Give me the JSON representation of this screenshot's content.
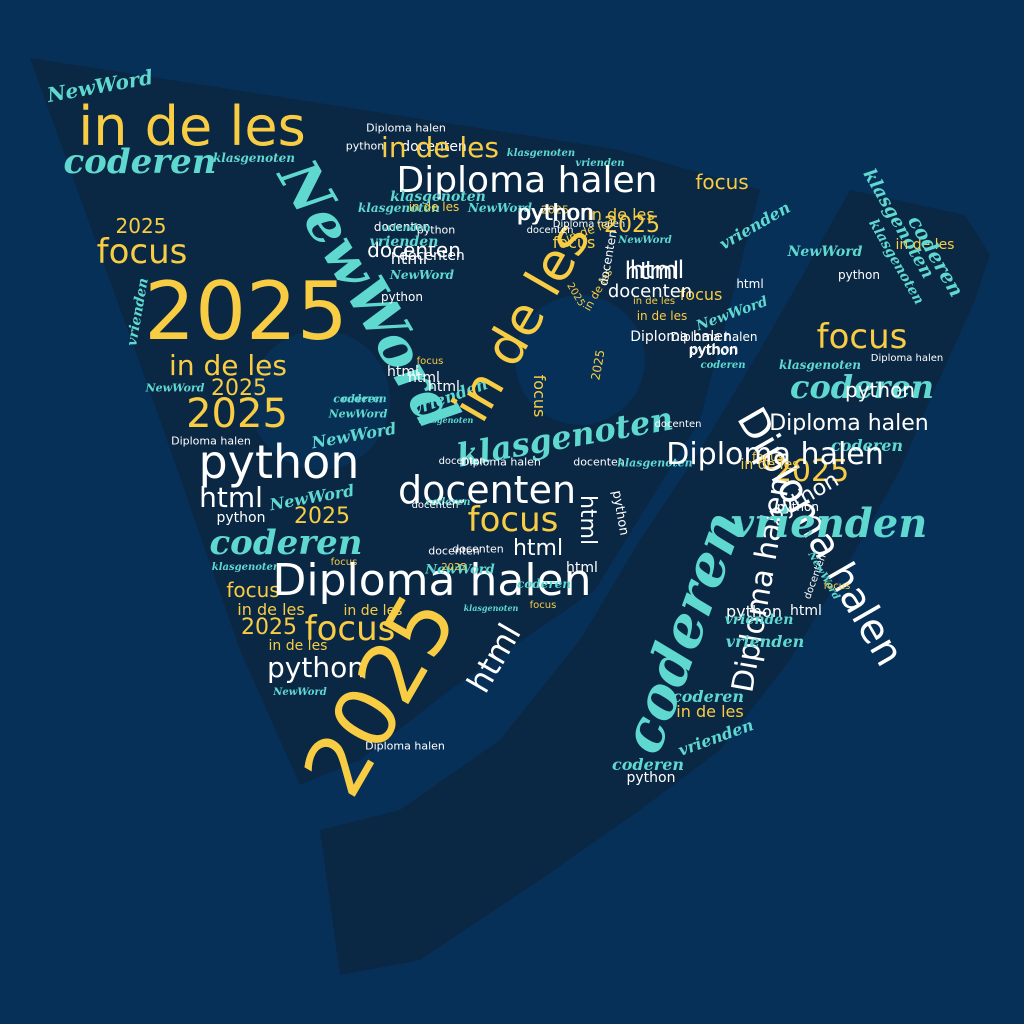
{
  "colors": {
    "background": "#063058",
    "shape_fill": "#0a2744",
    "yellow": "#f8cd44",
    "white": "#ffffff",
    "teal": "#5fd9d0"
  },
  "words": [
    {
      "id": "w1",
      "text": "NewWord",
      "color": "teal",
      "rotation": -10
    },
    {
      "id": "w2",
      "text": "in de les",
      "color": "yellow",
      "rotation": 0
    },
    {
      "id": "w3",
      "text": "coderen",
      "color": "teal",
      "rotation": 0
    },
    {
      "id": "w4",
      "text": "Diploma halen",
      "color": "white",
      "rotation": 0
    },
    {
      "id": "w5",
      "text": "klasgenoten",
      "color": "teal",
      "rotation": 0
    },
    {
      "id": "w6",
      "text": "2025",
      "color": "yellow",
      "rotation": 0
    },
    {
      "id": "w7",
      "text": "focus",
      "color": "yellow",
      "rotation": 0
    },
    {
      "id": "w8",
      "text": "2025",
      "color": "yellow",
      "rotation": 0
    },
    {
      "id": "w9",
      "text": "vrienden",
      "color": "teal",
      "rotation": -80
    },
    {
      "id": "w10",
      "text": "in de les",
      "color": "yellow",
      "rotation": 0
    },
    {
      "id": "w11",
      "text": "NewWord",
      "color": "teal",
      "rotation": 0
    },
    {
      "id": "w12",
      "text": "2025",
      "color": "yellow",
      "rotation": 0
    },
    {
      "id": "w13",
      "text": "2025",
      "color": "yellow",
      "rotation": 0
    },
    {
      "id": "w14",
      "text": "Diploma halen",
      "color": "white",
      "rotation": 0
    },
    {
      "id": "w15",
      "text": "python",
      "color": "white",
      "rotation": 0
    },
    {
      "id": "w16",
      "text": "html",
      "color": "white",
      "rotation": 0
    },
    {
      "id": "w17",
      "text": "NewWord",
      "color": "teal",
      "rotation": -10
    },
    {
      "id": "w18",
      "text": "python",
      "color": "white",
      "rotation": 0
    },
    {
      "id": "w19",
      "text": "2025",
      "color": "yellow",
      "rotation": 0
    },
    {
      "id": "w20",
      "text": "coderen",
      "color": "teal",
      "rotation": 0
    },
    {
      "id": "w21",
      "text": "klasgenoten",
      "color": "teal",
      "rotation": 0
    },
    {
      "id": "w22",
      "text": "focus",
      "color": "yellow",
      "rotation": 0
    },
    {
      "id": "w23",
      "text": "focus",
      "color": "yellow",
      "rotation": 0
    },
    {
      "id": "w24",
      "text": "in de les",
      "color": "yellow",
      "rotation": 0
    },
    {
      "id": "w25",
      "text": "2025",
      "color": "yellow",
      "rotation": 0
    },
    {
      "id": "w26",
      "text": "in de les",
      "color": "yellow",
      "rotation": 0
    },
    {
      "id": "w27",
      "text": "python",
      "color": "white",
      "rotation": 0
    },
    {
      "id": "w28",
      "text": "NewWord",
      "color": "teal",
      "rotation": 0
    },
    {
      "id": "w29",
      "text": "Diploma halen",
      "color": "white",
      "rotation": 0
    },
    {
      "id": "w30",
      "text": "coderen",
      "color": "teal",
      "rotation": 0
    },
    {
      "id": "w31",
      "text": "klasgenoten",
      "color": "teal",
      "rotation": 0
    },
    {
      "id": "w32",
      "text": "in de les",
      "color": "yellow",
      "rotation": 0
    },
    {
      "id": "w33",
      "text": "Diploma halen",
      "color": "white",
      "rotation": 0
    },
    {
      "id": "w34",
      "text": "focus",
      "color": "yellow",
      "rotation": 0
    },
    {
      "id": "w35",
      "text": "2025",
      "color": "yellow",
      "rotation": -60
    },
    {
      "id": "w36",
      "text": "focus",
      "color": "yellow",
      "rotation": 0
    },
    {
      "id": "w37",
      "text": "docenten",
      "color": "white",
      "rotation": 0
    },
    {
      "id": "w38",
      "text": "NewWord",
      "color": "teal",
      "rotation": 0
    },
    {
      "id": "w39",
      "text": "python",
      "color": "white",
      "rotation": 0
    },
    {
      "id": "w40",
      "text": "NewWord",
      "color": "teal",
      "rotation": 60
    },
    {
      "id": "w41",
      "text": "2025",
      "color": "yellow",
      "rotation": 0
    },
    {
      "id": "w42",
      "text": "python",
      "color": "white",
      "rotation": 0
    },
    {
      "id": "w43",
      "text": "html",
      "color": "white",
      "rotation": 0
    },
    {
      "id": "w44",
      "text": "focus",
      "color": "yellow",
      "rotation": 0
    },
    {
      "id": "w45",
      "text": "html",
      "color": "white",
      "rotation": 0
    },
    {
      "id": "w46",
      "text": "html",
      "color": "white",
      "rotation": 0
    },
    {
      "id": "w47",
      "text": "vrienden",
      "color": "teal",
      "rotation": -20
    },
    {
      "id": "w48",
      "text": "klasgenoten",
      "color": "teal",
      "rotation": 0
    },
    {
      "id": "w49",
      "text": "coderen",
      "color": "teal",
      "rotation": 0
    },
    {
      "id": "w50",
      "text": "NewWord",
      "color": "teal",
      "rotation": 0
    },
    {
      "id": "w51",
      "text": "NewWord",
      "color": "teal",
      "rotation": -10
    },
    {
      "id": "w52",
      "text": "in de les",
      "color": "yellow",
      "rotation": -60
    },
    {
      "id": "w53",
      "text": "focus",
      "color": "yellow",
      "rotation": 90
    },
    {
      "id": "w54",
      "text": "klasgenoten",
      "color": "teal",
      "rotation": -10
    },
    {
      "id": "w55",
      "text": "docenten",
      "color": "white",
      "rotation": 0
    },
    {
      "id": "w56",
      "text": "Diploma halen",
      "color": "white",
      "rotation": 0
    },
    {
      "id": "w57",
      "text": "docenten",
      "color": "white",
      "rotation": 0
    },
    {
      "id": "w58",
      "text": "klasgenoten",
      "color": "teal",
      "rotation": 0
    },
    {
      "id": "w59",
      "text": "docenten",
      "color": "white",
      "rotation": 0
    },
    {
      "id": "w60",
      "text": "focus",
      "color": "yellow",
      "rotation": 0
    },
    {
      "id": "w61",
      "text": "html",
      "color": "white",
      "rotation": 90
    },
    {
      "id": "w62",
      "text": "python",
      "color": "white",
      "rotation": 80
    },
    {
      "id": "w63",
      "text": "html",
      "color": "white",
      "rotation": 0
    },
    {
      "id": "w64",
      "text": "docenten",
      "color": "white",
      "rotation": 0
    },
    {
      "id": "w65",
      "text": "html",
      "color": "white",
      "rotation": 0
    },
    {
      "id": "w66",
      "text": "2025",
      "color": "yellow",
      "rotation": 0
    },
    {
      "id": "w67",
      "text": "Diploma halen",
      "color": "white",
      "rotation": 0
    },
    {
      "id": "w68",
      "text": "focus",
      "color": "yellow",
      "rotation": 0
    },
    {
      "id": "w69",
      "text": "in de les",
      "color": "yellow",
      "rotation": 0
    },
    {
      "id": "w70",
      "text": "2025",
      "color": "yellow",
      "rotation": 0
    },
    {
      "id": "w71",
      "text": "focus",
      "color": "yellow",
      "rotation": 0
    },
    {
      "id": "w72",
      "text": "in de les",
      "color": "yellow",
      "rotation": 0
    },
    {
      "id": "w73",
      "text": "2025",
      "color": "yellow",
      "rotation": -80
    },
    {
      "id": "w74",
      "text": "2025",
      "color": "yellow",
      "rotation": 60
    },
    {
      "id": "w75",
      "text": "html",
      "color": "white",
      "rotation": -60
    },
    {
      "id": "w76",
      "text": "klasgenoten",
      "color": "teal",
      "rotation": 0
    },
    {
      "id": "w77",
      "text": "vrienden",
      "color": "teal",
      "rotation": 0
    },
    {
      "id": "w78",
      "text": "Diploma halen",
      "color": "white",
      "rotation": 0
    },
    {
      "id": "w79",
      "text": "focus",
      "color": "yellow",
      "rotation": 0
    },
    {
      "id": "w80",
      "text": "python",
      "color": "white",
      "rotation": 0
    },
    {
      "id": "w81",
      "text": "NewWord",
      "color": "teal",
      "rotation": 0
    },
    {
      "id": "w82",
      "text": "NewWord",
      "color": "teal",
      "rotation": -20
    },
    {
      "id": "w83",
      "text": "html",
      "color": "white",
      "rotation": 0
    },
    {
      "id": "w84",
      "text": "Diploma halen",
      "color": "white",
      "rotation": 0
    },
    {
      "id": "w85",
      "text": "in de les",
      "color": "yellow",
      "rotation": -60
    },
    {
      "id": "w86",
      "text": "docenten",
      "color": "white",
      "rotation": -80
    },
    {
      "id": "w87",
      "text": "in de les",
      "color": "yellow",
      "rotation": 0
    },
    {
      "id": "w88",
      "text": "docenten",
      "color": "white",
      "rotation": 0
    },
    {
      "id": "w89",
      "text": "python",
      "color": "white",
      "rotation": 0
    },
    {
      "id": "w90",
      "text": "html",
      "color": "white",
      "rotation": 0
    },
    {
      "id": "w91",
      "text": "docenten",
      "color": "white",
      "rotation": 0
    },
    {
      "id": "w92",
      "text": "python",
      "color": "white",
      "rotation": 0
    },
    {
      "id": "w93",
      "text": "docenten",
      "color": "white",
      "rotation": 0
    },
    {
      "id": "w94",
      "text": "klasgenoten",
      "color": "teal",
      "rotation": 0
    },
    {
      "id": "w95",
      "text": "klasgenoten",
      "color": "teal",
      "rotation": 0
    },
    {
      "id": "w96",
      "text": "vrienden",
      "color": "teal",
      "rotation": 0
    },
    {
      "id": "w97",
      "text": "html",
      "color": "white",
      "rotation": 0
    },
    {
      "id": "w98",
      "text": "NewWord",
      "color": "teal",
      "rotation": 0
    },
    {
      "id": "w99",
      "text": "docenten",
      "color": "white",
      "rotation": 0
    },
    {
      "id": "w100",
      "text": "vrienden",
      "color": "teal",
      "rotation": 0
    },
    {
      "id": "w101",
      "text": "Diploma halen",
      "color": "white",
      "rotation": 0
    },
    {
      "id": "w102",
      "text": "coderen",
      "color": "teal",
      "rotation": 0
    },
    {
      "id": "w103",
      "text": "NewWord",
      "color": "teal",
      "rotation": 0
    },
    {
      "id": "w104",
      "text": "docenten",
      "color": "white",
      "rotation": 0
    },
    {
      "id": "w105",
      "text": "coderen",
      "color": "teal",
      "rotation": 0
    },
    {
      "id": "w106",
      "text": "docenten",
      "color": "white",
      "rotation": 0
    },
    {
      "id": "w107",
      "text": "in de les",
      "color": "yellow",
      "rotation": 0
    },
    {
      "id": "w108",
      "text": "docenten",
      "color": "white",
      "rotation": 0
    },
    {
      "id": "w109",
      "text": "coderen",
      "color": "teal",
      "rotation": 0
    },
    {
      "id": "w110",
      "text": "in de les",
      "color": "yellow",
      "rotation": 0
    },
    {
      "id": "w111",
      "text": "python",
      "color": "white",
      "rotation": 0
    },
    {
      "id": "w112",
      "text": "docenten",
      "color": "white",
      "rotation": 0
    },
    {
      "id": "w113",
      "text": "in de les",
      "color": "yellow",
      "rotation": -20
    },
    {
      "id": "w114",
      "text": "python",
      "color": "white",
      "rotation": 0
    },
    {
      "id": "w115",
      "text": "html",
      "color": "white",
      "rotation": 0
    },
    {
      "id": "w116",
      "text": "vrienden",
      "color": "teal",
      "rotation": -30
    },
    {
      "id": "w117",
      "text": "python",
      "color": "white",
      "rotation": 0
    },
    {
      "id": "w118",
      "text": "focus",
      "color": "yellow",
      "rotation": 0
    },
    {
      "id": "w119",
      "text": "Diploma halen",
      "color": "white",
      "rotation": 0
    },
    {
      "id": "w120",
      "text": "klasgenoten",
      "color": "teal",
      "rotation": 0
    },
    {
      "id": "w121",
      "text": "coderen",
      "color": "teal",
      "rotation": 0
    },
    {
      "id": "w122",
      "text": "Diploma halen",
      "color": "white",
      "rotation": 0
    },
    {
      "id": "w123",
      "text": "coderen",
      "color": "teal",
      "rotation": 0
    },
    {
      "id": "w124",
      "text": "2025",
      "color": "yellow",
      "rotation": 0
    },
    {
      "id": "w125",
      "text": "python",
      "color": "white",
      "rotation": -30
    },
    {
      "id": "w126",
      "text": "Diploma halen",
      "color": "white",
      "rotation": 60
    },
    {
      "id": "w127",
      "text": "Diploma halen",
      "color": "white",
      "rotation": -80
    },
    {
      "id": "w128",
      "text": "docenten",
      "color": "white",
      "rotation": -70
    },
    {
      "id": "w129",
      "text": "coderen",
      "color": "teal",
      "rotation": -70
    },
    {
      "id": "w130",
      "text": "python",
      "color": "white",
      "rotation": 0
    },
    {
      "id": "w131",
      "text": "html",
      "color": "white",
      "rotation": 0
    },
    {
      "id": "w132",
      "text": "vrienden",
      "color": "teal",
      "rotation": 0
    },
    {
      "id": "w133",
      "text": "vrienden",
      "color": "teal",
      "rotation": 0
    },
    {
      "id": "w134",
      "text": "coderen",
      "color": "teal",
      "rotation": 0
    },
    {
      "id": "w135",
      "text": "in de les",
      "color": "yellow",
      "rotation": 0
    },
    {
      "id": "w136",
      "text": "vrienden",
      "color": "teal",
      "rotation": -20
    },
    {
      "id": "w137",
      "text": "coderen",
      "color": "teal",
      "rotation": 0
    },
    {
      "id": "w138",
      "text": "python",
      "color": "white",
      "rotation": 0
    },
    {
      "id": "w139",
      "text": "NewWord",
      "color": "teal",
      "rotation": 60
    },
    {
      "id": "w140",
      "text": "focus",
      "color": "yellow",
      "rotation": 0
    },
    {
      "id": "w141",
      "text": "klasgenoten",
      "color": "teal",
      "rotation": 60
    },
    {
      "id": "w142",
      "text": "in de les",
      "color": "yellow",
      "rotation": 0
    },
    {
      "id": "w143",
      "text": "coderen",
      "color": "teal",
      "rotation": 60
    },
    {
      "id": "w144",
      "text": "klasgenoten",
      "color": "teal",
      "rotation": 60
    },
    {
      "id": "w145",
      "text": "NewWord",
      "color": "teal",
      "rotation": 0
    },
    {
      "id": "w146",
      "text": "python",
      "color": "white",
      "rotation": 0
    },
    {
      "id": "w147",
      "text": "focus",
      "color": "yellow",
      "rotation": 0
    },
    {
      "id": "w148",
      "text": "Diploma halen",
      "color": "white",
      "rotation": 0
    },
    {
      "id": "w149",
      "text": "vrienden",
      "color": "teal",
      "rotation": 0
    },
    {
      "id": "w150",
      "text": "in de les",
      "color": "yellow",
      "rotation": 0
    },
    {
      "id": "w151",
      "text": "python",
      "color": "white",
      "rotation": 0
    }
  ]
}
